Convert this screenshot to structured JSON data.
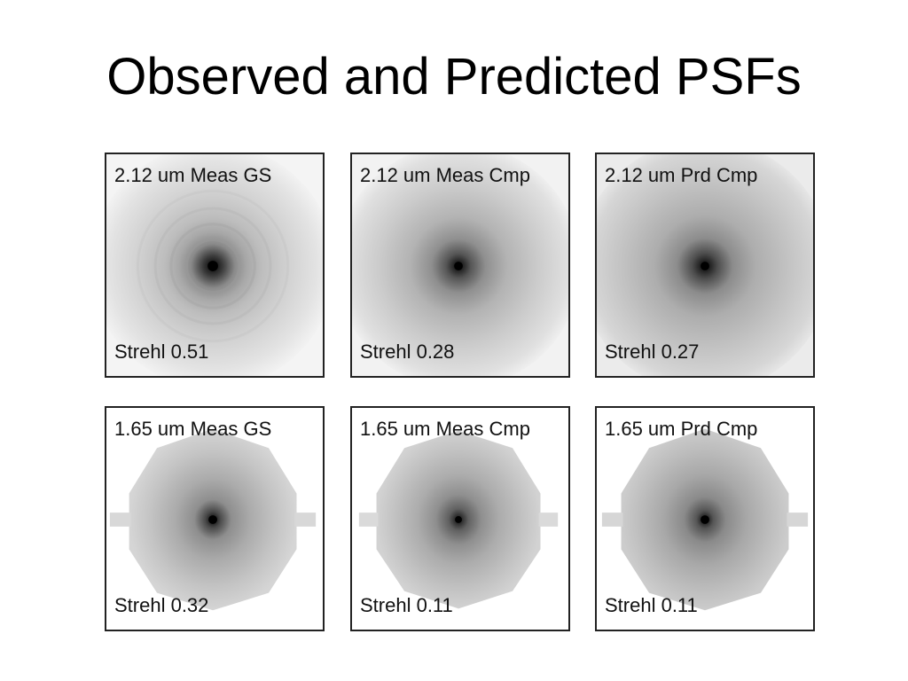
{
  "title": "Observed and Predicted PSFs",
  "panels": [
    {
      "label": "2.12 um Meas GS",
      "strehl": "Strehl 0.51"
    },
    {
      "label": "2.12 um Meas Cmp",
      "strehl": "Strehl 0.28"
    },
    {
      "label": "2.12 um Prd Cmp",
      "strehl": "Strehl 0.27"
    },
    {
      "label": "1.65 um Meas GS",
      "strehl": "Strehl 0.32"
    },
    {
      "label": "1.65 um Meas Cmp",
      "strehl": "Strehl 0.11"
    },
    {
      "label": "1.65 um Prd Cmp",
      "strehl": "Strehl 0.11"
    }
  ],
  "colors": {
    "background": "#ffffff",
    "border": "#222222",
    "text": "#111111"
  }
}
